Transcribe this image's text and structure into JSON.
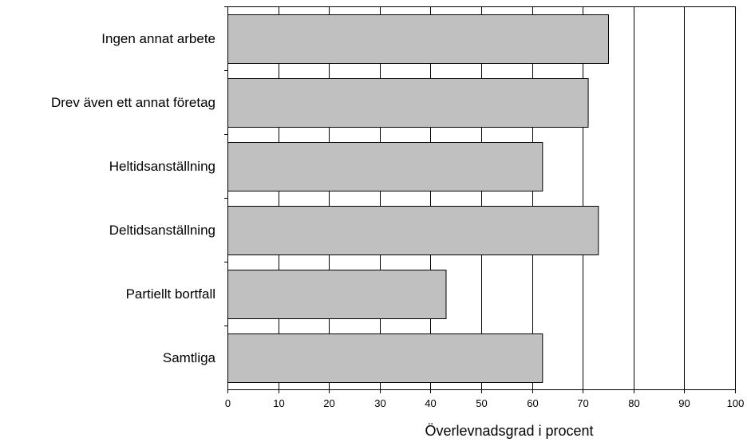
{
  "chart_data": {
    "type": "bar",
    "orientation": "horizontal",
    "categories": [
      "Ingen annat arbete",
      "Drev även ett annat företag",
      "Heltidsanställning",
      "Deltidsanställning",
      "Partiellt bortfall",
      "Samtliga"
    ],
    "values": [
      75,
      71,
      62,
      73,
      43,
      62
    ],
    "xlabel": "Överlevnadsgrad i procent",
    "ylabel": "",
    "title": "",
    "xlim": [
      0,
      100
    ],
    "xticks": [
      "0",
      "10",
      "20",
      "30",
      "40",
      "50",
      "60",
      "70",
      "80",
      "90",
      "100"
    ],
    "grid": "vertical",
    "bar_color": "#c0c0c0"
  }
}
